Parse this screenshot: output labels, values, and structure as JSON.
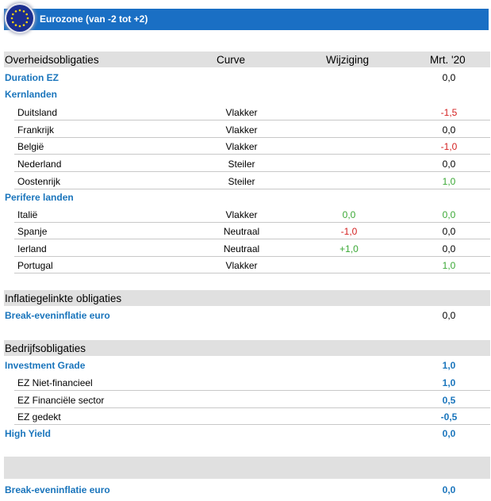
{
  "banner": {
    "title": "Eurozone (van -2 tot +2)",
    "flag_icon": "eu-flag-icon"
  },
  "colors": {
    "banner": "#1a6fc4",
    "category": "#1a75bc",
    "negative": "#d42020",
    "positive": "#3aa835",
    "header_bg": "#e0e0e0"
  },
  "gov": {
    "title": "Overheidsobligaties",
    "col_curve": "Curve",
    "col_change": "Wijziging",
    "col_mrt": "Mrt. '20",
    "duration": {
      "label": "Duration  EZ",
      "mrt": "0,0"
    },
    "core": {
      "label": "Kernlanden",
      "rows": [
        {
          "label": "Duitsland",
          "curve": "Vlakker",
          "change": "",
          "mrt": "-1,5"
        },
        {
          "label": "Frankrijk",
          "curve": "Vlakker",
          "change": "",
          "mrt": "0,0"
        },
        {
          "label": "België",
          "curve": "Vlakker",
          "change": "",
          "mrt": "-1,0"
        },
        {
          "label": "Nederland",
          "curve": "Steiler",
          "change": "",
          "mrt": "0,0"
        },
        {
          "label": "Oostenrijk",
          "curve": "Steiler",
          "change": "",
          "mrt": "1,0"
        }
      ]
    },
    "periphery": {
      "label": "Perifere landen",
      "rows": [
        {
          "label": "Italië",
          "curve": "Vlakker",
          "change": "0,0",
          "mrt": "0,0"
        },
        {
          "label": "Spanje",
          "curve": "Neutraal",
          "change": "-1,0",
          "mrt": "0,0"
        },
        {
          "label": "Ierland",
          "curve": "Neutraal",
          "change": "+1,0",
          "mrt": "0,0"
        },
        {
          "label": "Portugal",
          "curve": "Vlakker",
          "change": "",
          "mrt": "1,0"
        }
      ]
    }
  },
  "inflation": {
    "title": "Inflatiegelinkte obligaties",
    "breakeven": {
      "label": "Break-eveninflatie  euro",
      "mrt": "0,0"
    }
  },
  "corporate": {
    "title": "Bedrijfsobligaties",
    "ig": {
      "label": "Investment Grade",
      "mrt": "1,0"
    },
    "rows": [
      {
        "label": "EZ Niet-financieel",
        "mrt": "1,0"
      },
      {
        "label": "EZ Financiële sector",
        "mrt": "0,5"
      },
      {
        "label": "EZ gedekt",
        "mrt": "-0,5"
      }
    ],
    "hy": {
      "label": "High Yield",
      "mrt": "0,0"
    }
  },
  "bottom": {
    "title": "",
    "breakeven": {
      "label": "Break-eveninflatie  euro",
      "mrt": "0,0"
    }
  }
}
